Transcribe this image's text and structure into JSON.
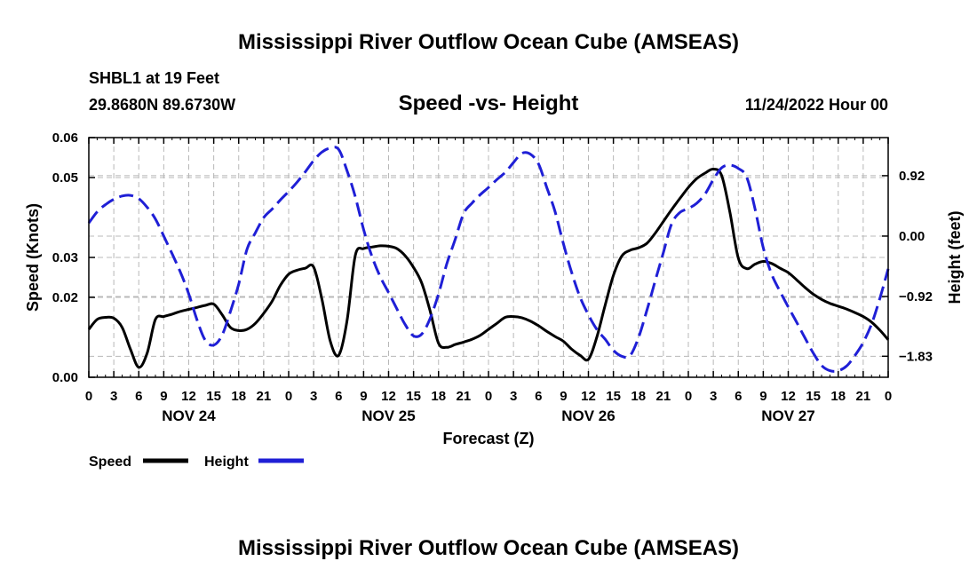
{
  "chart_data": {
    "type": "line",
    "title": "Mississippi River Outflow Ocean Cube (AMSEAS)",
    "subtitle": "Speed -vs- Height",
    "station": "SHBL1 at 19 Feet",
    "location": "29.8680N  89.6730W",
    "date": "11/24/2022 Hour 00",
    "xlabel": "Forecast (Z)",
    "ylabel": "Speed (Knots)",
    "y2label": "Height (feet)",
    "x_ticks": [
      "0",
      "3",
      "6",
      "9",
      "12",
      "15",
      "18",
      "21",
      "0",
      "3",
      "6",
      "9",
      "12",
      "15",
      "18",
      "21",
      "0",
      "3",
      "6",
      "9",
      "12",
      "15",
      "18",
      "21",
      "0",
      "3",
      "6",
      "9",
      "12",
      "15",
      "18",
      "21",
      "0"
    ],
    "x_range": [
      0,
      96
    ],
    "day_labels": [
      {
        "hour": 12,
        "label": "NOV 24"
      },
      {
        "hour": 36,
        "label": "NOV 25"
      },
      {
        "hour": 60,
        "label": "NOV 26"
      },
      {
        "hour": 84,
        "label": "NOV 27"
      }
    ],
    "ylim": [
      0.0,
      0.06
    ],
    "y_ticks": [
      0.0,
      0.02,
      0.03,
      0.05,
      0.06
    ],
    "y_tick_labels": [
      "0.00",
      "0.02",
      "0.03",
      "0.05",
      "0.06"
    ],
    "y2lim": [
      -2.15,
      1.5
    ],
    "y2_ticks": [
      -1.83,
      -0.92,
      0.0,
      0.92
    ],
    "y2_tick_labels": [
      "−1.83",
      "−0.92",
      "0.00",
      "0.92"
    ],
    "series": [
      {
        "name": "Speed",
        "color": "#000000",
        "axis": "left",
        "x": [
          0,
          1,
          2,
          3,
          4,
          5,
          6,
          7,
          8,
          9,
          10,
          11,
          12,
          13,
          14,
          15,
          16,
          17,
          18,
          19,
          20,
          21,
          22,
          23,
          24,
          25,
          26,
          27,
          28,
          29,
          30,
          31,
          32,
          33,
          34,
          35,
          36,
          37,
          38,
          39,
          40,
          41,
          42,
          43,
          44,
          45,
          46,
          47,
          48,
          49,
          50,
          51,
          52,
          53,
          54,
          55,
          56,
          57,
          58,
          59,
          60,
          61,
          62,
          63,
          64,
          65,
          66,
          67,
          68,
          69,
          70,
          71,
          72,
          73,
          74,
          75,
          76,
          77,
          78,
          79,
          80,
          81,
          82,
          83,
          84,
          85,
          86,
          87,
          88,
          89,
          90,
          91,
          92,
          93,
          94,
          95,
          96
        ],
        "values": [
          0.012,
          0.0145,
          0.015,
          0.0148,
          0.0125,
          0.007,
          0.0025,
          0.006,
          0.0145,
          0.0152,
          0.0158,
          0.0165,
          0.017,
          0.0175,
          0.018,
          0.0183,
          0.0157,
          0.0125,
          0.0117,
          0.012,
          0.0135,
          0.016,
          0.019,
          0.023,
          0.0258,
          0.0268,
          0.0273,
          0.0276,
          0.0195,
          0.009,
          0.0055,
          0.014,
          0.0305,
          0.0322,
          0.0326,
          0.0329,
          0.0328,
          0.0322,
          0.0304,
          0.0275,
          0.0235,
          0.0165,
          0.0085,
          0.0075,
          0.0082,
          0.0088,
          0.0095,
          0.0105,
          0.012,
          0.0135,
          0.015,
          0.0152,
          0.0149,
          0.0141,
          0.0129,
          0.0115,
          0.0102,
          0.009,
          0.007,
          0.0055,
          0.0045,
          0.01,
          0.018,
          0.0255,
          0.0303,
          0.0318,
          0.0324,
          0.0335,
          0.036,
          0.039,
          0.042,
          0.0448,
          0.0475,
          0.0497,
          0.0511,
          0.0521,
          0.0505,
          0.0412,
          0.0298,
          0.0272,
          0.0283,
          0.029,
          0.0285,
          0.0273,
          0.0262,
          0.0244,
          0.0225,
          0.0208,
          0.0195,
          0.0185,
          0.0178,
          0.0171,
          0.0162,
          0.0152,
          0.0138,
          0.0118,
          0.0094
        ]
      },
      {
        "name": "Height",
        "color": "#1f1fd6",
        "axis": "right",
        "x": [
          0,
          1,
          2,
          3,
          4,
          5,
          6,
          7,
          8,
          9,
          10,
          11,
          12,
          13,
          14,
          15,
          16,
          17,
          18,
          19,
          20,
          21,
          22,
          23,
          24,
          25,
          26,
          27,
          28,
          29,
          30,
          31,
          32,
          33,
          34,
          35,
          36,
          37,
          38,
          39,
          40,
          41,
          42,
          43,
          44,
          45,
          46,
          47,
          48,
          49,
          50,
          51,
          52,
          53,
          54,
          55,
          56,
          57,
          58,
          59,
          60,
          61,
          62,
          63,
          64,
          65,
          66,
          67,
          68,
          69,
          70,
          71,
          72,
          73,
          74,
          75,
          76,
          77,
          78,
          79,
          80,
          81,
          82,
          83,
          84,
          85,
          86,
          87,
          88,
          89,
          90,
          91,
          92,
          93,
          94,
          95,
          96
        ],
        "values": [
          0.2,
          0.37,
          0.48,
          0.56,
          0.61,
          0.62,
          0.57,
          0.44,
          0.26,
          0.0,
          -0.27,
          -0.55,
          -0.88,
          -1.28,
          -1.59,
          -1.66,
          -1.51,
          -1.15,
          -0.73,
          -0.2,
          0.05,
          0.28,
          0.41,
          0.55,
          0.68,
          0.82,
          0.98,
          1.15,
          1.28,
          1.34,
          1.32,
          1.0,
          0.6,
          0.1,
          -0.31,
          -0.62,
          -0.86,
          -1.11,
          -1.35,
          -1.52,
          -1.49,
          -1.25,
          -0.88,
          -0.42,
          -0.05,
          0.34,
          0.5,
          0.63,
          0.74,
          0.86,
          0.97,
          1.12,
          1.26,
          1.25,
          1.1,
          0.74,
          0.37,
          -0.12,
          -0.56,
          -0.93,
          -1.2,
          -1.42,
          -1.57,
          -1.74,
          -1.83,
          -1.82,
          -1.55,
          -1.14,
          -0.69,
          -0.25,
          0.19,
          0.36,
          0.42,
          0.5,
          0.64,
          0.86,
          1.04,
          1.08,
          1.03,
          0.9,
          0.42,
          -0.18,
          -0.58,
          -0.84,
          -1.08,
          -1.31,
          -1.55,
          -1.78,
          -1.97,
          -2.05,
          -2.05,
          -1.98,
          -1.82,
          -1.62,
          -1.34,
          -0.95,
          -0.5
        ]
      }
    ],
    "legend": [
      {
        "label": "Speed",
        "color": "#000000"
      },
      {
        "label": "Height",
        "color": "#1f1fd6"
      }
    ],
    "footer_title": "Mississippi River Outflow Ocean Cube (AMSEAS)"
  }
}
